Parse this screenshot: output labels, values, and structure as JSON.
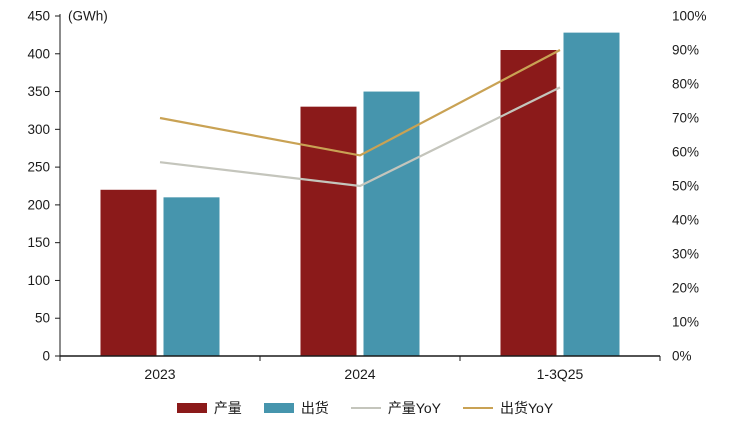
{
  "chart_data": {
    "type": "bar",
    "title": "",
    "unit_label": "(GWh)",
    "categories": [
      "2023",
      "2024",
      "1-3Q25"
    ],
    "left_axis": {
      "min": 0,
      "max": 450,
      "step": 50
    },
    "right_axis": {
      "min": 0,
      "max": 100,
      "step": 10,
      "suffix": "%"
    },
    "bar_series": [
      {
        "name": "产量",
        "color": "#8B1A1A",
        "axis": "left",
        "values": [
          220,
          330,
          405
        ]
      },
      {
        "name": "出货",
        "color": "#4695AD",
        "axis": "left",
        "values": [
          210,
          350,
          428
        ]
      }
    ],
    "line_series": [
      {
        "name": "产量YoY",
        "color": "#C4C5BC",
        "axis": "right",
        "values": [
          57,
          50,
          79
        ]
      },
      {
        "name": "出货YoY",
        "color": "#C9A254",
        "axis": "right",
        "values": [
          70,
          59,
          90
        ]
      }
    ],
    "legend_position": "bottom",
    "grid": false,
    "axis_color": "#1a1a1a"
  }
}
